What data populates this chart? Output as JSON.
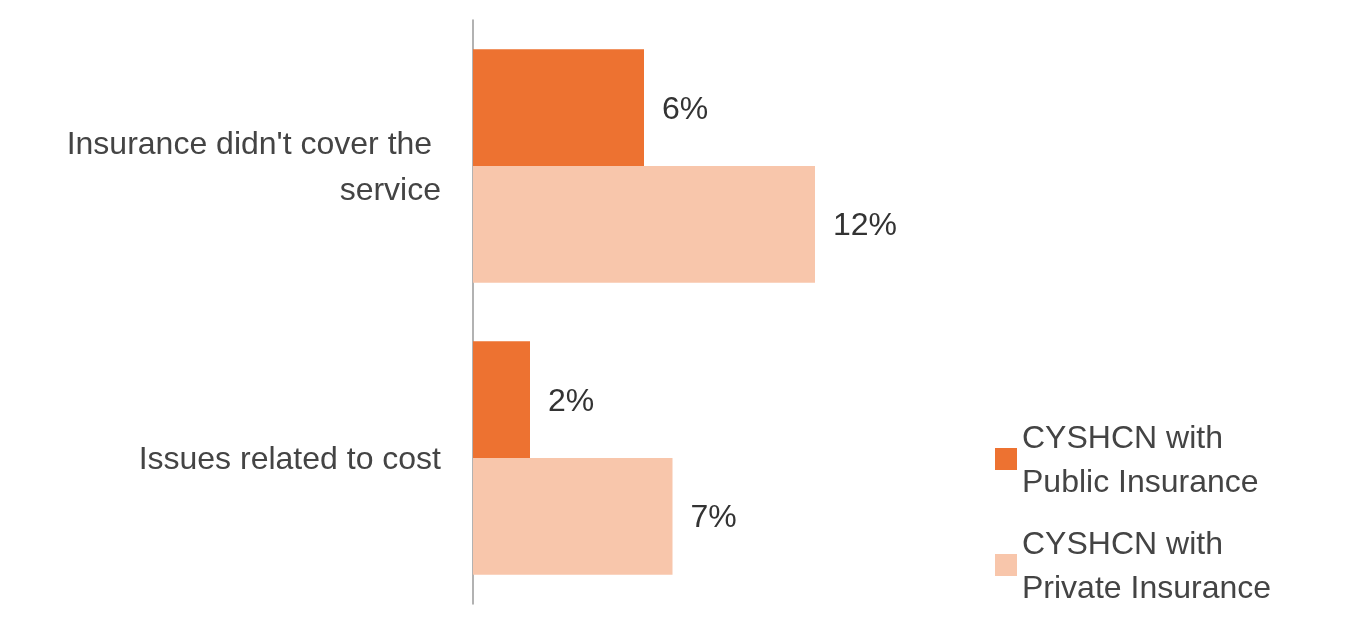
{
  "chart_data": {
    "type": "bar",
    "orientation": "horizontal",
    "categories": [
      "Insurance didn't cover the service",
      "Issues related to cost"
    ],
    "series": [
      {
        "name": "CYSHCN with Public Insurance",
        "color": "#ed7231",
        "values": [
          6,
          2
        ],
        "value_labels": [
          "6%",
          "2%"
        ]
      },
      {
        "name": "CYSHCN with Private Insurance",
        "color": "#f8c6ab",
        "values": [
          12,
          7
        ],
        "value_labels": [
          "12%",
          "7%"
        ]
      }
    ],
    "legend": "bottom right",
    "grid": false
  }
}
